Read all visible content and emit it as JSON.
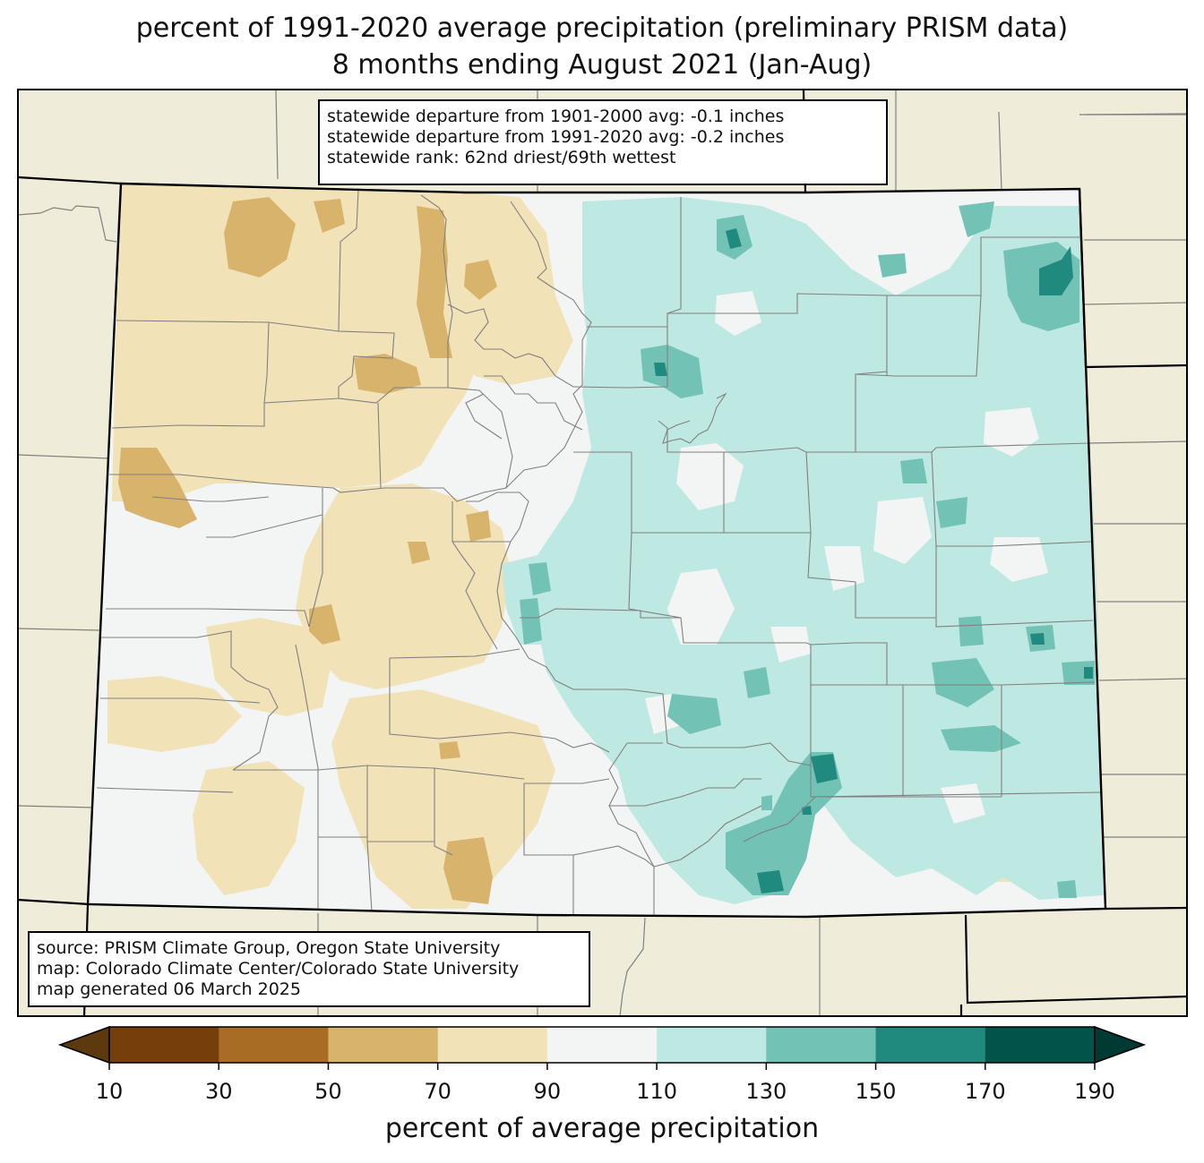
{
  "title": {
    "line1": "percent of 1991-2020 average precipitation (preliminary PRISM data)",
    "line2": "8 months ending August 2021 (Jan-Aug)"
  },
  "stats": {
    "line1": "statewide departure from 1901-2000 avg: -0.1 inches",
    "line2": "statewide departure from 1991-2020 avg: -0.2 inches",
    "line3": "statewide rank: 62nd driest/69th wettest"
  },
  "source": {
    "line1": "source: PRISM Climate Group, Oregon State University",
    "line2": "map: Colorado Climate Center/Colorado State University",
    "line3": "map generated 06 March 2025"
  },
  "colorbar": {
    "label": "percent of average precipitation",
    "ticks": [
      "10",
      "30",
      "50",
      "70",
      "90",
      "110",
      "130",
      "150",
      "170",
      "190"
    ],
    "colors": [
      "#5c3a0e",
      "#743f0a",
      "#a86c24",
      "#d8b36c",
      "#f2e2b8",
      "#f3f5f4",
      "#bee8e2",
      "#72c2b5",
      "#218a7f",
      "#01544a",
      "#013a33"
    ]
  },
  "map_colors": {
    "background": "#efedd9",
    "boundary": "#000000",
    "county": "#808080"
  }
}
